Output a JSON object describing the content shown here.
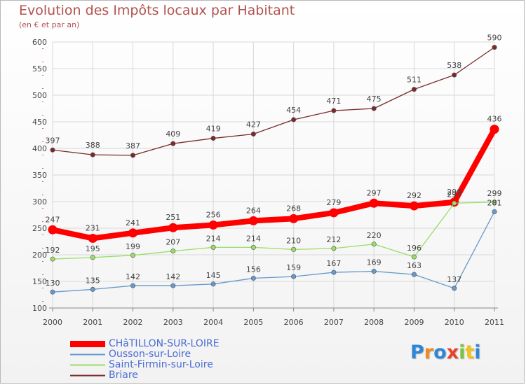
{
  "chart_data": {
    "type": "line",
    "title": "Evolution des Impôts locaux par Habitant",
    "subtitle": "(en € et par an)",
    "xlabel": "",
    "ylabel": "",
    "ylim": [
      100,
      600
    ],
    "yticks": [
      100,
      150,
      200,
      250,
      300,
      350,
      400,
      450,
      500,
      550,
      600
    ],
    "grid": true,
    "legend_position": "bottom-left",
    "x": [
      "2000",
      "2001",
      "2002",
      "2003",
      "2004",
      "2005",
      "2006",
      "2007",
      "2008",
      "2009",
      "2010",
      "2011"
    ],
    "series": [
      {
        "name": "Briare",
        "color": "#7a2a2a",
        "values": [
          397,
          388,
          387,
          409,
          419,
          427,
          454,
          471,
          475,
          511,
          538,
          590
        ]
      },
      {
        "name": "CHâTILLON-SUR-LOIRE",
        "color": "#ff0000",
        "values": [
          247,
          231,
          241,
          251,
          256,
          264,
          268,
          279,
          297,
          292,
          299,
          436
        ]
      },
      {
        "name": "Saint-Firmin-sur-Loire",
        "color": "#99dd66",
        "values": [
          192,
          195,
          199,
          207,
          214,
          214,
          210,
          212,
          220,
          196,
          297,
          299
        ]
      },
      {
        "name": "Ousson-sur-Loire",
        "color": "#6699cc",
        "values": [
          130,
          135,
          142,
          142,
          145,
          156,
          159,
          167,
          169,
          163,
          137,
          281
        ]
      }
    ]
  },
  "legend": [
    {
      "label": "CHâTILLON-SUR-LOIRE",
      "color": "#ff0000",
      "thick": true
    },
    {
      "label": "Ousson-sur-Loire",
      "color": "#6699cc",
      "thick": false
    },
    {
      "label": "Saint-Firmin-sur-Loire",
      "color": "#99dd66",
      "thick": false
    },
    {
      "label": "Briare",
      "color": "#7a2a2a",
      "thick": false
    }
  ],
  "logo": {
    "letters": [
      "P",
      "r",
      "o",
      "x",
      "i",
      "t",
      "i"
    ],
    "colors": [
      "#2e86d6",
      "#f08a1c",
      "#2e86d6",
      "#e8432a",
      "#7cc242",
      "#f3c21a",
      "#2e86d6"
    ]
  }
}
